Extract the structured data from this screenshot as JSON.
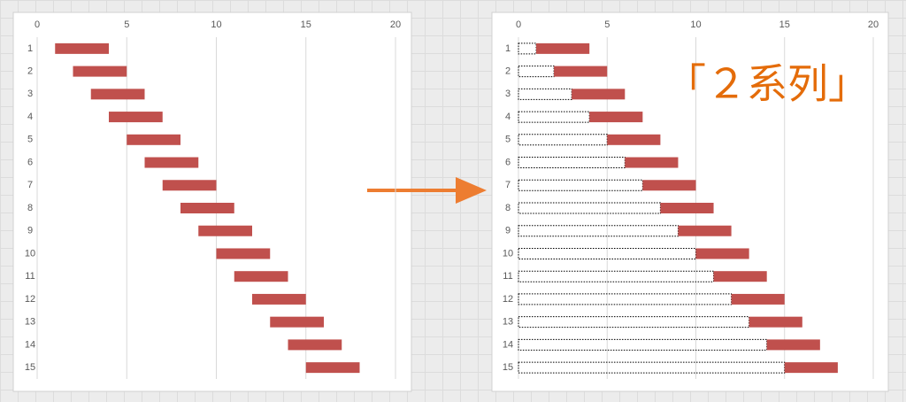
{
  "chart_data": [
    {
      "type": "bar",
      "orientation": "horizontal",
      "stacked": true,
      "categories": [
        "1",
        "2",
        "3",
        "4",
        "5",
        "6",
        "7",
        "8",
        "9",
        "10",
        "11",
        "12",
        "13",
        "14",
        "15"
      ],
      "series": [
        {
          "color": "none",
          "border": "none",
          "values": [
            1,
            2,
            3,
            4,
            5,
            6,
            7,
            8,
            9,
            10,
            11,
            12,
            13,
            14,
            15
          ]
        },
        {
          "color": "#c0504d",
          "border": "none",
          "values": [
            3,
            3,
            3,
            3,
            3,
            3,
            3,
            3,
            3,
            3,
            3,
            3,
            3,
            3,
            3
          ]
        }
      ],
      "xlim": [
        0,
        20
      ],
      "xticks": [
        0,
        5,
        10,
        15,
        20
      ],
      "grid": true
    },
    {
      "type": "bar",
      "orientation": "horizontal",
      "stacked": true,
      "annotation": "「２系列」",
      "categories": [
        "1",
        "2",
        "3",
        "4",
        "5",
        "6",
        "7",
        "8",
        "9",
        "10",
        "11",
        "12",
        "13",
        "14",
        "15"
      ],
      "series": [
        {
          "color": "none",
          "border": "dotted",
          "values": [
            1,
            2,
            3,
            4,
            5,
            6,
            7,
            8,
            9,
            10,
            11,
            12,
            13,
            14,
            15
          ]
        },
        {
          "color": "#c0504d",
          "border": "none",
          "values": [
            3,
            3,
            3,
            3,
            3,
            3,
            3,
            3,
            3,
            3,
            3,
            3,
            3,
            3,
            3
          ]
        }
      ],
      "xlim": [
        0,
        20
      ],
      "xticks": [
        0,
        5,
        10,
        15,
        20
      ],
      "grid": true
    }
  ]
}
